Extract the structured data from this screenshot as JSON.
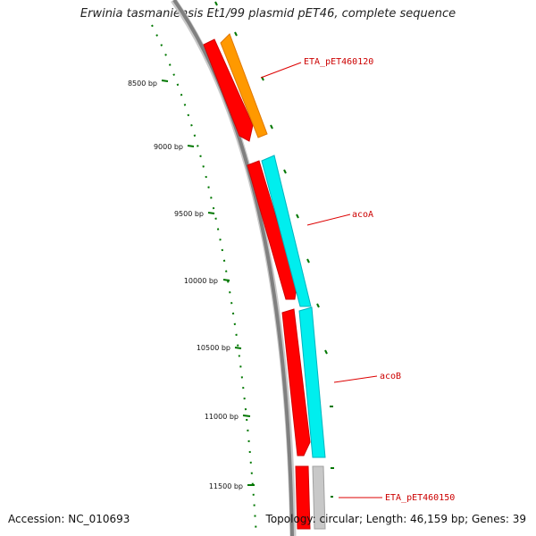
{
  "title": "Erwinia tasmaniensis Et1/99 plasmid pET46, complete sequence",
  "footer": {
    "accession": "Accession: NC_010693",
    "topology": "Topology: circular; Length: 46,159 bp; Genes: 39"
  },
  "ticks": [
    {
      "label": "8500 bp"
    },
    {
      "label": "9000 bp"
    },
    {
      "label": "9500 bp"
    },
    {
      "label": "10000 bp"
    },
    {
      "label": "10500 bp"
    },
    {
      "label": "11000 bp"
    },
    {
      "label": "11500 bp"
    }
  ],
  "gene_labels": [
    {
      "label": "ETA_pET460120"
    },
    {
      "label": "acoA"
    },
    {
      "label": "acoB"
    },
    {
      "label": "ETA_pET460150"
    }
  ],
  "colors": {
    "backbone": "#808080",
    "reverse_cds": "#ff0000",
    "orange_cds": "#ff9900",
    "cyan_cds": "#00e5ee",
    "grey_cds": "#c0c0c0",
    "tick": "#007700",
    "label_line": "#dd0000"
  }
}
